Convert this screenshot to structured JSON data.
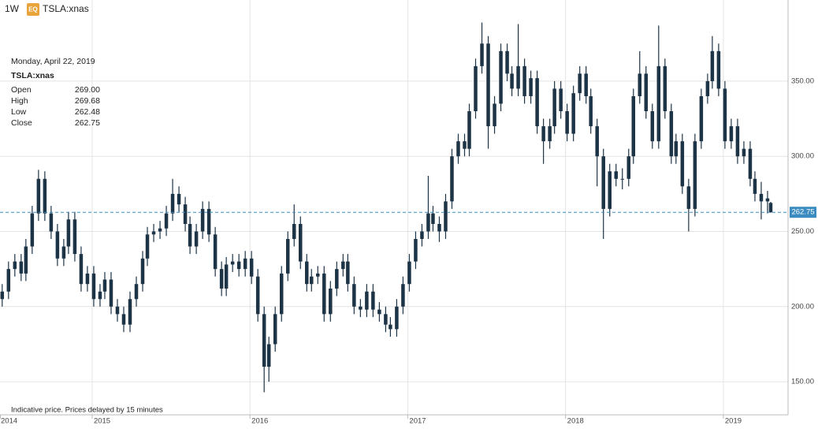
{
  "header": {
    "interval": "1W",
    "badge": "EQ",
    "symbol": "TSLA:xnas"
  },
  "tooltip": {
    "date": "Monday, April 22, 2019",
    "symbol": "TSLA:xnas",
    "rows": [
      {
        "label": "Open",
        "value": "269.00"
      },
      {
        "label": "High",
        "value": "269.68"
      },
      {
        "label": "Low",
        "value": "262.48"
      },
      {
        "label": "Close",
        "value": "262.75"
      }
    ]
  },
  "note": "Indicative price. Prices delayed by 15 minutes",
  "chart_data": {
    "type": "candlestick",
    "color": "#1d3346",
    "xlim": [
      2014.416,
      2019.41
    ],
    "xticks": [
      2014,
      2015,
      2016,
      2017,
      2018,
      2019
    ],
    "ylim": [
      128,
      404
    ],
    "yticks": [
      {
        "value": 150,
        "label": "150.00"
      },
      {
        "value": 200,
        "label": "200.00"
      },
      {
        "value": 250,
        "label": "250.00"
      },
      {
        "value": 300,
        "label": "300.00"
      },
      {
        "value": 350,
        "label": "350.00"
      }
    ],
    "grid": true,
    "last_price": {
      "value": 262.75,
      "label": "262.75",
      "color": "#3a8bbf"
    },
    "x": [
      2014.43,
      2014.47,
      2014.51,
      2014.55,
      2014.58,
      2014.62,
      2014.66,
      2014.7,
      2014.74,
      2014.78,
      2014.82,
      2014.85,
      2014.89,
      2014.93,
      2014.97,
      2015.01,
      2015.05,
      2015.08,
      2015.12,
      2015.16,
      2015.2,
      2015.24,
      2015.28,
      2015.32,
      2015.35,
      2015.39,
      2015.43,
      2015.47,
      2015.51,
      2015.55,
      2015.59,
      2015.62,
      2015.66,
      2015.7,
      2015.74,
      2015.78,
      2015.82,
      2015.85,
      2015.89,
      2015.93,
      2015.97,
      2016.01,
      2016.05,
      2016.09,
      2016.12,
      2016.16,
      2016.2,
      2016.24,
      2016.28,
      2016.32,
      2016.36,
      2016.39,
      2016.43,
      2016.47,
      2016.51,
      2016.55,
      2016.59,
      2016.62,
      2016.66,
      2016.7,
      2016.74,
      2016.78,
      2016.82,
      2016.86,
      2016.89,
      2016.93,
      2016.97,
      2017.01,
      2017.05,
      2017.09,
      2017.13,
      2017.16,
      2017.2,
      2017.24,
      2017.28,
      2017.32,
      2017.36,
      2017.39,
      2017.43,
      2017.47,
      2017.51,
      2017.55,
      2017.59,
      2017.63,
      2017.66,
      2017.7,
      2017.74,
      2017.78,
      2017.82,
      2017.86,
      2017.9,
      2017.93,
      2017.97,
      2018.01,
      2018.05,
      2018.09,
      2018.13,
      2018.16,
      2018.2,
      2018.24,
      2018.28,
      2018.32,
      2018.36,
      2018.4,
      2018.43,
      2018.47,
      2018.51,
      2018.55,
      2018.59,
      2018.63,
      2018.67,
      2018.7,
      2018.74,
      2018.78,
      2018.82,
      2018.86,
      2018.9,
      2018.93,
      2018.97,
      2019.01,
      2019.05,
      2019.09,
      2019.13,
      2019.17,
      2019.2,
      2019.24,
      2019.28,
      2019.3
    ],
    "open": [
      205,
      210,
      225,
      230,
      222,
      240,
      262,
      285,
      262,
      250,
      232,
      240,
      258,
      235,
      215,
      222,
      205,
      210,
      218,
      200,
      195,
      188,
      205,
      215,
      232,
      248,
      250,
      252,
      262,
      275,
      268,
      255,
      240,
      250,
      265,
      248,
      225,
      212,
      228,
      230,
      225,
      232,
      220,
      195,
      160,
      175,
      195,
      222,
      245,
      255,
      230,
      215,
      220,
      222,
      195,
      212,
      225,
      230,
      215,
      200,
      198,
      210,
      198,
      195,
      188,
      185,
      200,
      215,
      230,
      245,
      250,
      262,
      255,
      250,
      270,
      300,
      310,
      305,
      330,
      360,
      375,
      320,
      335,
      370,
      355,
      345,
      360,
      340,
      352,
      320,
      310,
      320,
      345,
      330,
      315,
      342,
      355,
      340,
      320,
      300,
      265,
      290,
      285,
      285,
      300,
      340,
      355,
      330,
      310,
      360,
      330,
      300,
      310,
      280,
      265,
      310,
      340,
      350,
      370,
      345,
      310,
      320,
      300,
      305,
      285,
      275,
      270,
      269
    ],
    "high": [
      215,
      230,
      235,
      235,
      245,
      267,
      291,
      290,
      267,
      255,
      245,
      263,
      263,
      240,
      227,
      227,
      215,
      223,
      223,
      205,
      200,
      210,
      220,
      237,
      253,
      255,
      257,
      267,
      285,
      280,
      273,
      260,
      255,
      270,
      270,
      253,
      230,
      233,
      235,
      235,
      237,
      237,
      225,
      200,
      180,
      200,
      227,
      250,
      268,
      260,
      235,
      225,
      227,
      227,
      217,
      230,
      235,
      235,
      220,
      205,
      215,
      215,
      203,
      200,
      193,
      205,
      220,
      235,
      250,
      255,
      287,
      267,
      260,
      275,
      305,
      315,
      315,
      335,
      365,
      389,
      380,
      340,
      375,
      375,
      360,
      388,
      365,
      357,
      357,
      325,
      325,
      350,
      350,
      335,
      347,
      360,
      360,
      345,
      325,
      305,
      295,
      295,
      292,
      305,
      345,
      370,
      360,
      335,
      387,
      365,
      335,
      315,
      315,
      285,
      315,
      345,
      355,
      380,
      375,
      350,
      325,
      325,
      310,
      310,
      290,
      283,
      277,
      269.68
    ],
    "low": [
      200,
      205,
      220,
      217,
      217,
      235,
      257,
      257,
      245,
      227,
      227,
      235,
      230,
      210,
      210,
      200,
      200,
      205,
      195,
      190,
      183,
      183,
      200,
      210,
      227,
      243,
      245,
      247,
      257,
      263,
      250,
      235,
      235,
      245,
      243,
      220,
      207,
      207,
      223,
      220,
      220,
      215,
      190,
      143,
      150,
      170,
      190,
      217,
      240,
      225,
      210,
      210,
      215,
      190,
      190,
      207,
      220,
      210,
      195,
      193,
      193,
      193,
      190,
      183,
      180,
      180,
      195,
      210,
      225,
      240,
      245,
      250,
      243,
      245,
      265,
      295,
      300,
      300,
      325,
      355,
      305,
      315,
      330,
      350,
      340,
      340,
      335,
      335,
      315,
      295,
      305,
      315,
      325,
      310,
      310,
      337,
      335,
      315,
      280,
      245,
      260,
      280,
      278,
      280,
      295,
      335,
      325,
      305,
      305,
      325,
      295,
      295,
      275,
      250,
      260,
      305,
      335,
      345,
      340,
      305,
      305,
      295,
      295,
      280,
      270,
      258,
      262,
      262.48
    ],
    "close": [
      210,
      225,
      230,
      222,
      240,
      262,
      285,
      262,
      250,
      232,
      240,
      258,
      235,
      215,
      222,
      205,
      210,
      218,
      200,
      195,
      188,
      205,
      215,
      232,
      248,
      250,
      252,
      262,
      275,
      268,
      255,
      240,
      250,
      265,
      248,
      225,
      212,
      228,
      230,
      225,
      232,
      220,
      195,
      160,
      175,
      195,
      222,
      245,
      255,
      230,
      215,
      220,
      222,
      195,
      212,
      225,
      230,
      215,
      200,
      198,
      210,
      198,
      195,
      188,
      185,
      200,
      215,
      230,
      245,
      250,
      262,
      255,
      250,
      270,
      300,
      310,
      305,
      330,
      360,
      375,
      320,
      335,
      370,
      355,
      345,
      360,
      340,
      352,
      320,
      310,
      320,
      345,
      330,
      315,
      342,
      355,
      340,
      320,
      300,
      265,
      290,
      285,
      285,
      300,
      340,
      355,
      330,
      310,
      360,
      330,
      300,
      310,
      280,
      265,
      310,
      340,
      350,
      370,
      345,
      310,
      320,
      300,
      305,
      285,
      275,
      270,
      272,
      262.75
    ]
  }
}
